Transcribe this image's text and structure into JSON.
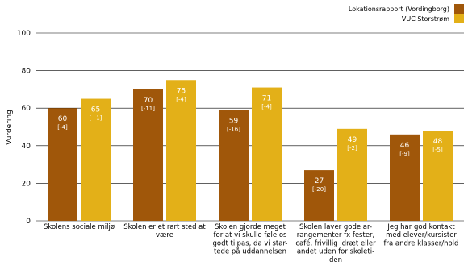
{
  "chart_data": {
    "type": "bar",
    "title": "",
    "xlabel": "",
    "ylabel": "Vurdering",
    "ylim": [
      0,
      100
    ],
    "yticks": [
      0,
      20,
      40,
      60,
      80,
      100
    ],
    "grid": true,
    "legend_position": "top-right",
    "categories": [
      "Skolens sociale miljø",
      "Skolen er et rart sted at være",
      "Skolen gjorde meget for at vi skulle føle os godt tilpas, da vi startede på uddannelsen",
      "Skolen laver gode arrangementer fx fester, café, frivillig idræt eller andet uden for skoletiden",
      "Jeg har god kontakt med elever/kursister fra andre klasser/hold"
    ],
    "category_lines": [
      [
        "Skolens sociale miljø"
      ],
      [
        "Skolen er et rart sted at",
        "være"
      ],
      [
        "Skolen gjorde meget",
        "for at vi skulle føle os",
        "godt tilpas, da vi star-",
        "tede på uddannelsen"
      ],
      [
        "Skolen laver gode ar-",
        "rangementer fx fester,",
        "café, frivillig idræt eller",
        "andet uden for skoleti-",
        "den"
      ],
      [
        "Jeg har god kontakt",
        "med elever/kursister",
        "fra andre klasser/hold"
      ]
    ],
    "series": [
      {
        "name": "Lokationsrapport (Vordingborg)",
        "color": "#A0570A",
        "values": [
          60,
          70,
          59,
          27,
          46
        ],
        "diffs": [
          "[-4]",
          "[-11]",
          "[-16]",
          "[-20]",
          "[-9]"
        ]
      },
      {
        "name": "VUC Storstrøm",
        "color": "#E3B018",
        "values": [
          65,
          75,
          71,
          49,
          48
        ],
        "diffs": [
          "[+1]",
          "[-4]",
          "[-4]",
          "[-2]",
          "[-5]"
        ]
      }
    ]
  }
}
